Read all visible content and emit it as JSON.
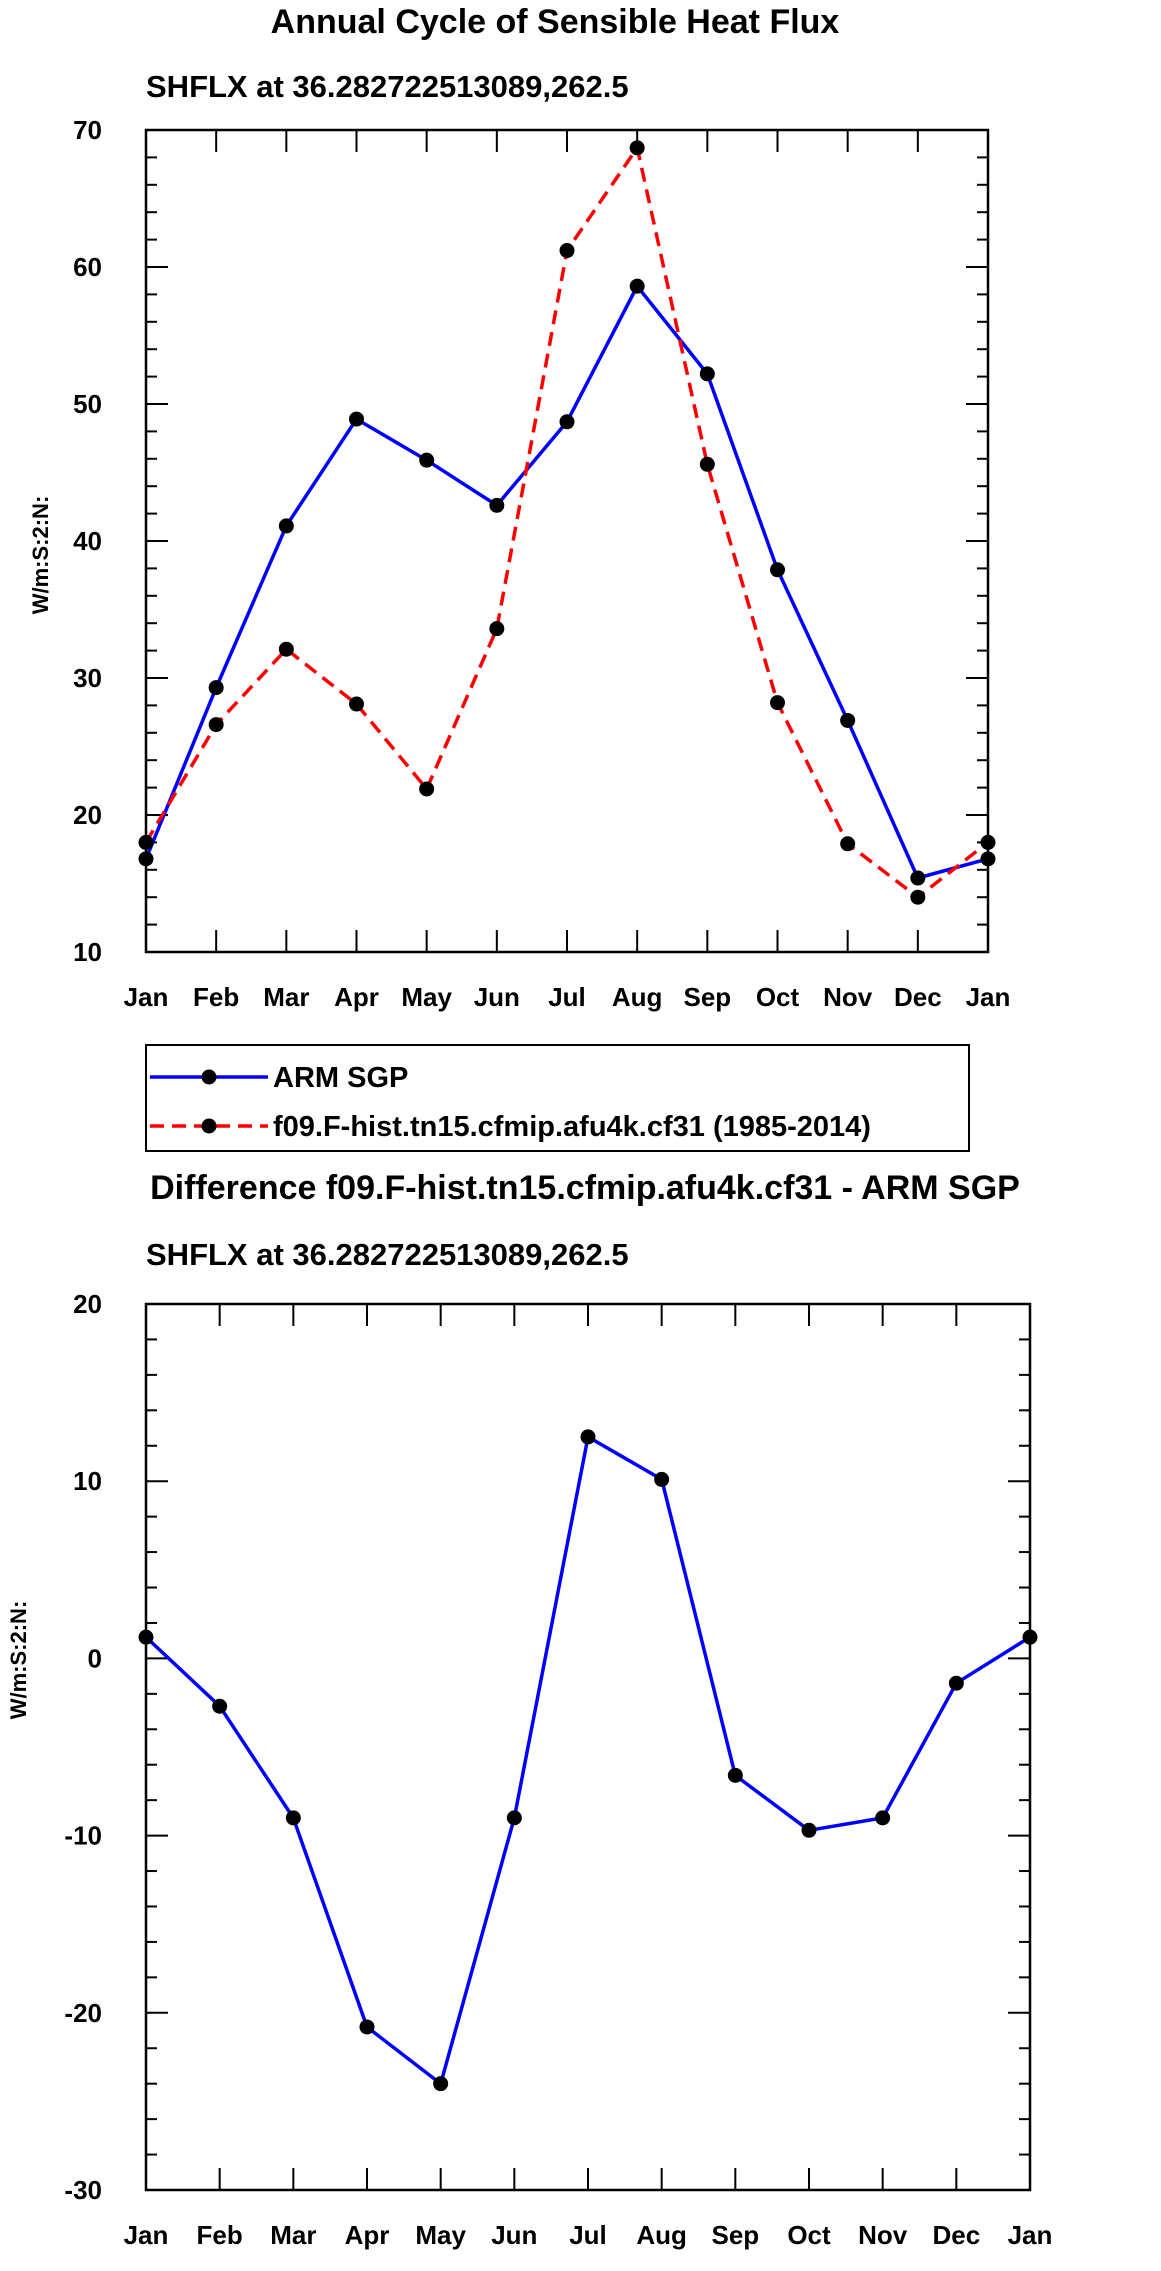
{
  "chart_data": [
    {
      "type": "line",
      "title": "Annual Cycle of Sensible Heat Flux",
      "subtitle": "SHFLX at 36.282722513089,262.5",
      "xlabel": "",
      "ylabel": "W/m:S:2:N:",
      "ylim": [
        10,
        70
      ],
      "yticks": [
        "10",
        "20",
        "30",
        "40",
        "50",
        "60",
        "70"
      ],
      "categories": [
        "Jan",
        "Feb",
        "Mar",
        "Apr",
        "May",
        "Jun",
        "Jul",
        "Aug",
        "Sep",
        "Oct",
        "Nov",
        "Dec",
        "Jan"
      ],
      "series": [
        {
          "name": "ARM SGP",
          "color": "#0000ff",
          "dash": "solid",
          "values": [
            16.8,
            29.3,
            41.1,
            48.9,
            45.9,
            42.6,
            48.7,
            58.6,
            52.2,
            37.9,
            26.9,
            15.4,
            16.8
          ]
        },
        {
          "name": "f09.F-hist.tn15.cfmip.afu4k.cf31 (1985-2014)",
          "color": "#ff0000",
          "dash": "dashed",
          "values": [
            18.0,
            26.6,
            32.1,
            28.1,
            21.9,
            33.6,
            61.2,
            68.7,
            45.6,
            28.2,
            17.9,
            14.0,
            18.0
          ]
        }
      ],
      "legend": "below"
    },
    {
      "type": "line",
      "title": "Difference f09.F-hist.tn15.cfmip.afu4k.cf31 - ARM SGP",
      "subtitle": "SHFLX at 36.282722513089,262.5",
      "xlabel": "",
      "ylabel": "W/m:S:2:N:",
      "ylim": [
        -30,
        20
      ],
      "yticks": [
        "-30",
        "-20",
        "-10",
        "0",
        "10",
        "20"
      ],
      "categories": [
        "Jan",
        "Feb",
        "Mar",
        "Apr",
        "May",
        "Jun",
        "Jul",
        "Aug",
        "Sep",
        "Oct",
        "Nov",
        "Dec",
        "Jan"
      ],
      "series": [
        {
          "name": "Difference",
          "color": "#0000ff",
          "dash": "solid",
          "values": [
            1.2,
            -2.7,
            -9.0,
            -20.8,
            -24.0,
            -9.0,
            12.5,
            10.1,
            -6.6,
            -9.7,
            -9.0,
            -1.4,
            1.2
          ]
        }
      ]
    }
  ]
}
